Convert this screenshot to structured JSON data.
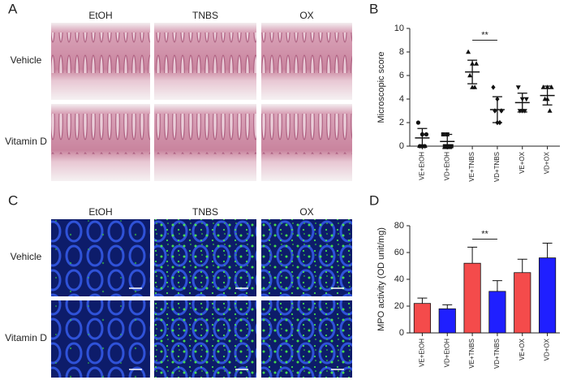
{
  "panel_labels": [
    "A",
    "B",
    "C",
    "D"
  ],
  "panel_a": {
    "columns": [
      "EtOH",
      "TNBS",
      "OX"
    ],
    "rows": [
      "Vehicle",
      "Vitamin D"
    ]
  },
  "panel_c": {
    "columns": [
      "EtOH",
      "TNBS",
      "OX"
    ],
    "rows": [
      "Vehicle",
      "Vitamin D"
    ]
  },
  "chart_data": [
    {
      "type": "scatter",
      "y_label": "Microscopic score",
      "categories": [
        "VE+EtOH",
        "VD+EtOH",
        "VE+TNBS",
        "VD+TNBS",
        "VE+OX",
        "VD+OX"
      ],
      "points": [
        [
          2,
          1,
          1,
          0,
          0,
          0
        ],
        [
          1,
          1,
          0,
          0,
          0,
          0
        ],
        [
          8,
          7,
          7,
          6,
          5,
          5
        ],
        [
          5,
          4,
          3,
          3,
          2,
          2
        ],
        [
          5,
          4,
          4,
          3,
          3,
          3
        ],
        [
          5,
          5,
          5,
          4,
          4,
          3
        ]
      ],
      "mean": [
        0.7,
        0.4,
        6.3,
        3.1,
        3.7,
        4.3
      ],
      "sd": [
        0.8,
        0.6,
        1.0,
        1.1,
        0.8,
        0.8
      ],
      "markers": [
        "circle",
        "square",
        "triangle-up",
        "diamond",
        "triangle-down",
        "triangle-up"
      ],
      "color": "#111111",
      "ylim": [
        0,
        10
      ],
      "yticks": [
        0,
        2,
        4,
        6,
        8,
        10
      ],
      "significance": "**"
    },
    {
      "type": "bar",
      "y_label": "MPO activity (OD unit/mg)",
      "categories": [
        "VE+EtOH",
        "VD+EtOH",
        "VE+TNBS",
        "VD+TNBS",
        "VE+OX",
        "VD+OX"
      ],
      "values": [
        22,
        18,
        52,
        31,
        45,
        56
      ],
      "errors": [
        4,
        3,
        12,
        8,
        10,
        11
      ],
      "colors": [
        "#f44b4b",
        "#1f1fff",
        "#f44b4b",
        "#1f1fff",
        "#f44b4b",
        "#1f1fff"
      ],
      "ylim": [
        0,
        80
      ],
      "yticks": [
        0,
        20,
        40,
        60,
        80
      ],
      "significance": "**"
    }
  ]
}
